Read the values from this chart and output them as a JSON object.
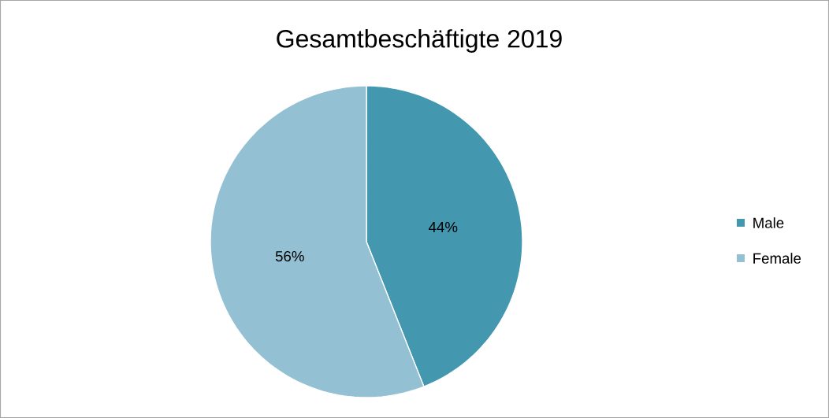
{
  "chart_data": {
    "type": "pie",
    "title": "Gesamtbeschäftigte 2019",
    "categories": [
      "Male",
      "Female"
    ],
    "values": [
      44,
      56
    ],
    "colors": [
      "#4398b0",
      "#93c1d3"
    ],
    "value_labels": [
      "44%",
      "56%"
    ],
    "legend": "right"
  }
}
